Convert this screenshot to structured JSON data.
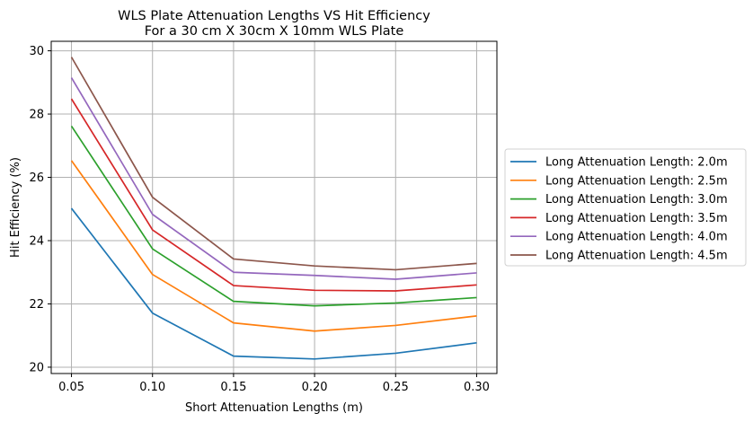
{
  "chart_data": {
    "type": "line",
    "title": "WLS Plate Attenuation Lengths VS Hit Efficiency",
    "subtitle": "For a 30 cm X 30cm X 10mm WLS Plate",
    "xlabel": "Short Attenuation Lengths (m)",
    "ylabel": "Hit Efficiency (%)",
    "x": [
      0.05,
      0.1,
      0.15,
      0.2,
      0.25,
      0.3
    ],
    "x_ticks": [
      "0.05",
      "0.10",
      "0.15",
      "0.20",
      "0.25",
      "0.30"
    ],
    "y_ticks": [
      "20",
      "22",
      "24",
      "26",
      "28",
      "30"
    ],
    "xlim": [
      0.0375,
      0.3125
    ],
    "ylim": [
      19.8,
      30.3
    ],
    "grid": true,
    "legend_position": "outside-right",
    "series": [
      {
        "name": "Long Attenuation Length: 2.0m",
        "color": "#1f77b4",
        "values": [
          25.02,
          21.71,
          20.35,
          20.26,
          20.44,
          20.77
        ]
      },
      {
        "name": "Long Attenuation Length: 2.5m",
        "color": "#ff7f0e",
        "values": [
          26.53,
          22.93,
          21.4,
          21.14,
          21.32,
          21.62
        ]
      },
      {
        "name": "Long Attenuation Length: 3.0m",
        "color": "#2ca02c",
        "values": [
          27.62,
          23.74,
          22.08,
          21.94,
          22.03,
          22.2
        ]
      },
      {
        "name": "Long Attenuation Length: 3.5m",
        "color": "#d62728",
        "values": [
          28.48,
          24.34,
          22.58,
          22.43,
          22.41,
          22.6
        ]
      },
      {
        "name": "Long Attenuation Length: 4.0m",
        "color": "#9467bd",
        "values": [
          29.15,
          24.83,
          23.0,
          22.9,
          22.78,
          22.98
        ]
      },
      {
        "name": "Long Attenuation Length: 4.5m",
        "color": "#8c564b",
        "values": [
          29.8,
          25.37,
          23.42,
          23.2,
          23.08,
          23.28
        ]
      }
    ]
  }
}
